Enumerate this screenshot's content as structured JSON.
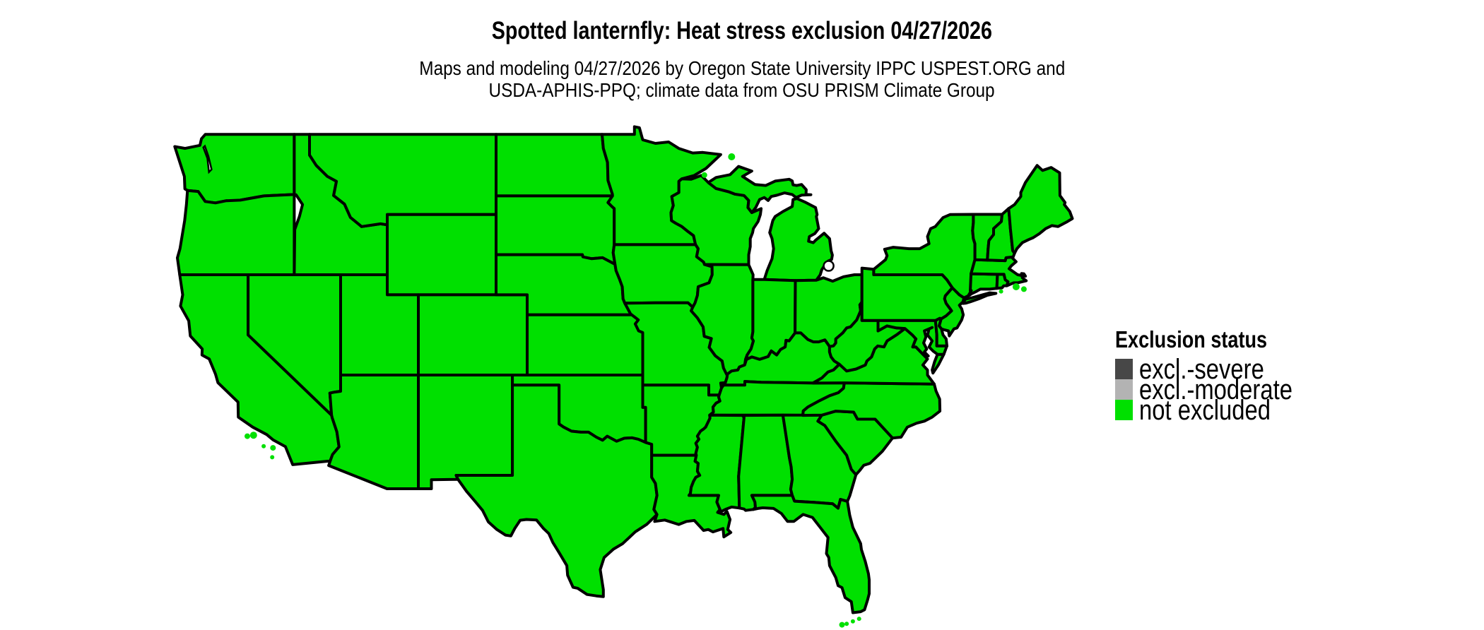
{
  "title": "Spotted lanternfly: Heat stress exclusion 04/27/2026",
  "subtitle": {
    "line1": "Maps and modeling 04/27/2026 by Oregon State University IPPC USPEST.ORG and",
    "line2": "USDA-APHIS-PPQ; climate data from OSU PRISM Climate Group"
  },
  "legend": {
    "title": "Exclusion status",
    "items": [
      {
        "label": "excl.-severe",
        "color": "#474747"
      },
      {
        "label": "excl.-moderate",
        "color": "#b3b3b3"
      },
      {
        "label": "not excluded",
        "color": "#00e000"
      }
    ]
  },
  "map": {
    "border_color": "#000000",
    "water_color": "#ffffff",
    "states": [
      {
        "id": "WA",
        "name": "Washington",
        "status": "not excluded"
      },
      {
        "id": "OR",
        "name": "Oregon",
        "status": "not excluded"
      },
      {
        "id": "CA",
        "name": "California",
        "status": "not excluded"
      },
      {
        "id": "NV",
        "name": "Nevada",
        "status": "not excluded"
      },
      {
        "id": "ID",
        "name": "Idaho",
        "status": "not excluded"
      },
      {
        "id": "MT",
        "name": "Montana",
        "status": "not excluded"
      },
      {
        "id": "WY",
        "name": "Wyoming",
        "status": "not excluded"
      },
      {
        "id": "UT",
        "name": "Utah",
        "status": "not excluded"
      },
      {
        "id": "CO",
        "name": "Colorado",
        "status": "not excluded"
      },
      {
        "id": "AZ",
        "name": "Arizona",
        "status": "not excluded"
      },
      {
        "id": "NM",
        "name": "New Mexico",
        "status": "not excluded"
      },
      {
        "id": "ND",
        "name": "North Dakota",
        "status": "not excluded"
      },
      {
        "id": "SD",
        "name": "South Dakota",
        "status": "not excluded"
      },
      {
        "id": "NE",
        "name": "Nebraska",
        "status": "not excluded"
      },
      {
        "id": "KS",
        "name": "Kansas",
        "status": "not excluded"
      },
      {
        "id": "OK",
        "name": "Oklahoma",
        "status": "not excluded"
      },
      {
        "id": "TX",
        "name": "Texas",
        "status": "not excluded"
      },
      {
        "id": "MN",
        "name": "Minnesota",
        "status": "not excluded"
      },
      {
        "id": "IA",
        "name": "Iowa",
        "status": "not excluded"
      },
      {
        "id": "MO",
        "name": "Missouri",
        "status": "not excluded"
      },
      {
        "id": "AR",
        "name": "Arkansas",
        "status": "not excluded"
      },
      {
        "id": "LA",
        "name": "Louisiana",
        "status": "not excluded"
      },
      {
        "id": "WI",
        "name": "Wisconsin",
        "status": "not excluded"
      },
      {
        "id": "IL",
        "name": "Illinois",
        "status": "not excluded"
      },
      {
        "id": "MI",
        "name": "Michigan",
        "status": "not excluded"
      },
      {
        "id": "IN",
        "name": "Indiana",
        "status": "not excluded"
      },
      {
        "id": "OH",
        "name": "Ohio",
        "status": "not excluded"
      },
      {
        "id": "KY",
        "name": "Kentucky",
        "status": "not excluded"
      },
      {
        "id": "TN",
        "name": "Tennessee",
        "status": "not excluded"
      },
      {
        "id": "MS",
        "name": "Mississippi",
        "status": "not excluded"
      },
      {
        "id": "AL",
        "name": "Alabama",
        "status": "not excluded"
      },
      {
        "id": "GA",
        "name": "Georgia",
        "status": "not excluded"
      },
      {
        "id": "FL",
        "name": "Florida",
        "status": "not excluded"
      },
      {
        "id": "SC",
        "name": "South Carolina",
        "status": "not excluded"
      },
      {
        "id": "NC",
        "name": "North Carolina",
        "status": "not excluded"
      },
      {
        "id": "VA",
        "name": "Virginia",
        "status": "not excluded"
      },
      {
        "id": "WV",
        "name": "West Virginia",
        "status": "not excluded"
      },
      {
        "id": "MD",
        "name": "Maryland",
        "status": "not excluded"
      },
      {
        "id": "DE",
        "name": "Delaware",
        "status": "not excluded"
      },
      {
        "id": "PA",
        "name": "Pennsylvania",
        "status": "not excluded"
      },
      {
        "id": "NJ",
        "name": "New Jersey",
        "status": "not excluded"
      },
      {
        "id": "NY",
        "name": "New York",
        "status": "not excluded"
      },
      {
        "id": "CT",
        "name": "Connecticut",
        "status": "not excluded"
      },
      {
        "id": "RI",
        "name": "Rhode Island",
        "status": "not excluded"
      },
      {
        "id": "MA",
        "name": "Massachusetts",
        "status": "not excluded"
      },
      {
        "id": "VT",
        "name": "Vermont",
        "status": "not excluded"
      },
      {
        "id": "NH",
        "name": "New Hampshire",
        "status": "not excluded"
      },
      {
        "id": "ME",
        "name": "Maine",
        "status": "not excluded"
      }
    ]
  }
}
